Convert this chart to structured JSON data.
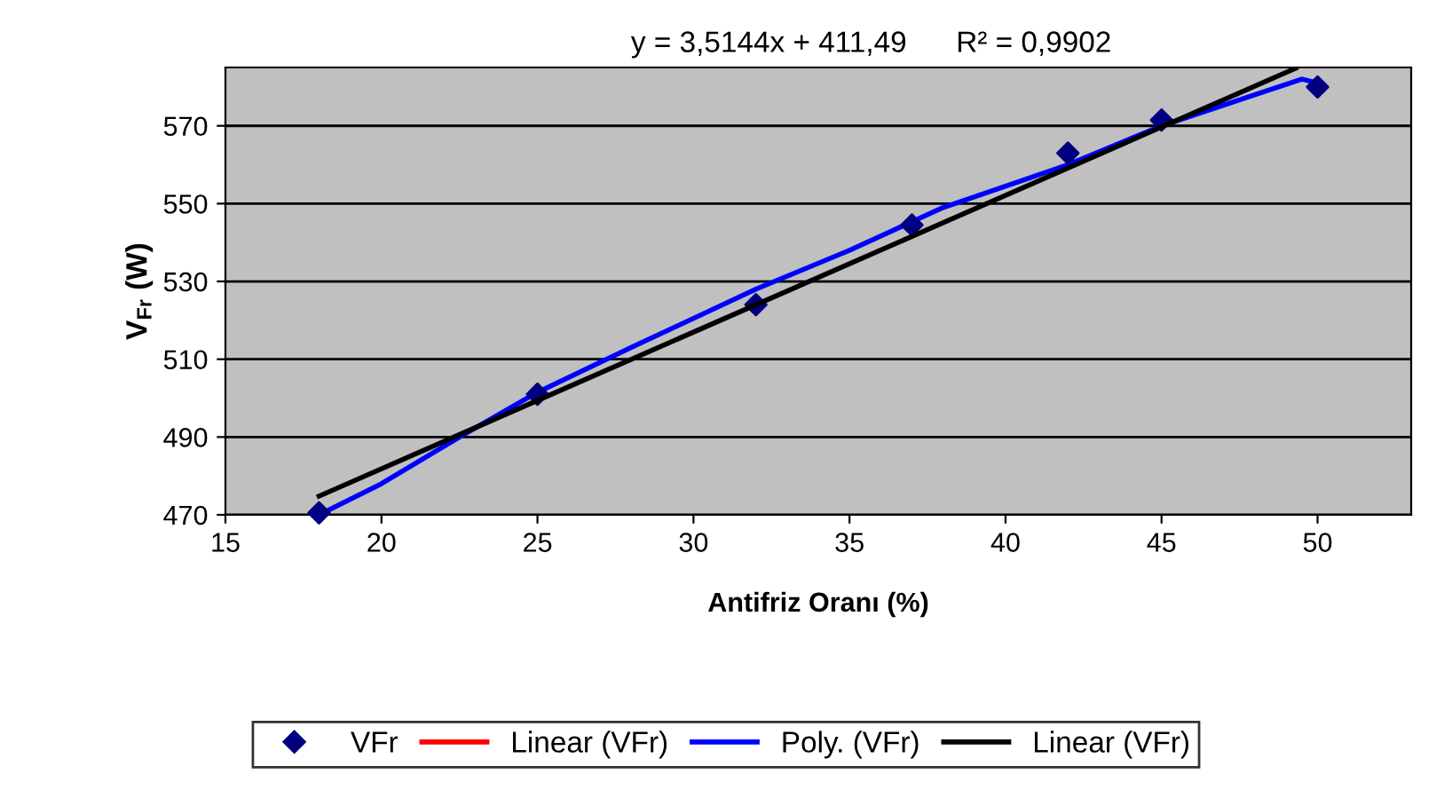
{
  "chart_data": {
    "type": "scatter",
    "xlabel": "Antifriz Oranı (%)",
    "ylabel": "V$_{Fr}$ (W)",
    "annotations": [
      "y = 3,5144x + 411,49      R² = 0,9902"
    ],
    "xlim": [
      15,
      53
    ],
    "xticks": [
      15,
      20,
      25,
      30,
      35,
      40,
      45,
      50
    ],
    "ylim": [
      470,
      585
    ],
    "yticks": [
      470,
      490,
      510,
      530,
      550,
      570
    ],
    "grid": "y",
    "legend": "bottom",
    "series": [
      {
        "name": "VFr",
        "marker": "diamond",
        "color": "#000080",
        "x": [
          18,
          25,
          32,
          37,
          42,
          45,
          50
        ],
        "values": [
          470.5,
          501,
          524,
          544.5,
          563,
          571.5,
          580
        ]
      },
      {
        "name": "Linear (VFr)",
        "type": "line",
        "color": "#ff0000"
      },
      {
        "name": "Poly. (VFr)",
        "type": "line",
        "color": "#0000ff",
        "x": [
          18,
          20,
          22.5,
          25,
          28,
          32,
          35,
          38,
          42,
          45,
          48,
          49.5,
          50
        ],
        "values": [
          470,
          478,
          490,
          501.5,
          513,
          528,
          538,
          549,
          560,
          570,
          578,
          582,
          581
        ]
      },
      {
        "name": "Linear (VFr)",
        "type": "line",
        "color": "#000000",
        "x": [
          18,
          49.3
        ],
        "values": [
          474.8,
          584.8
        ]
      }
    ]
  }
}
